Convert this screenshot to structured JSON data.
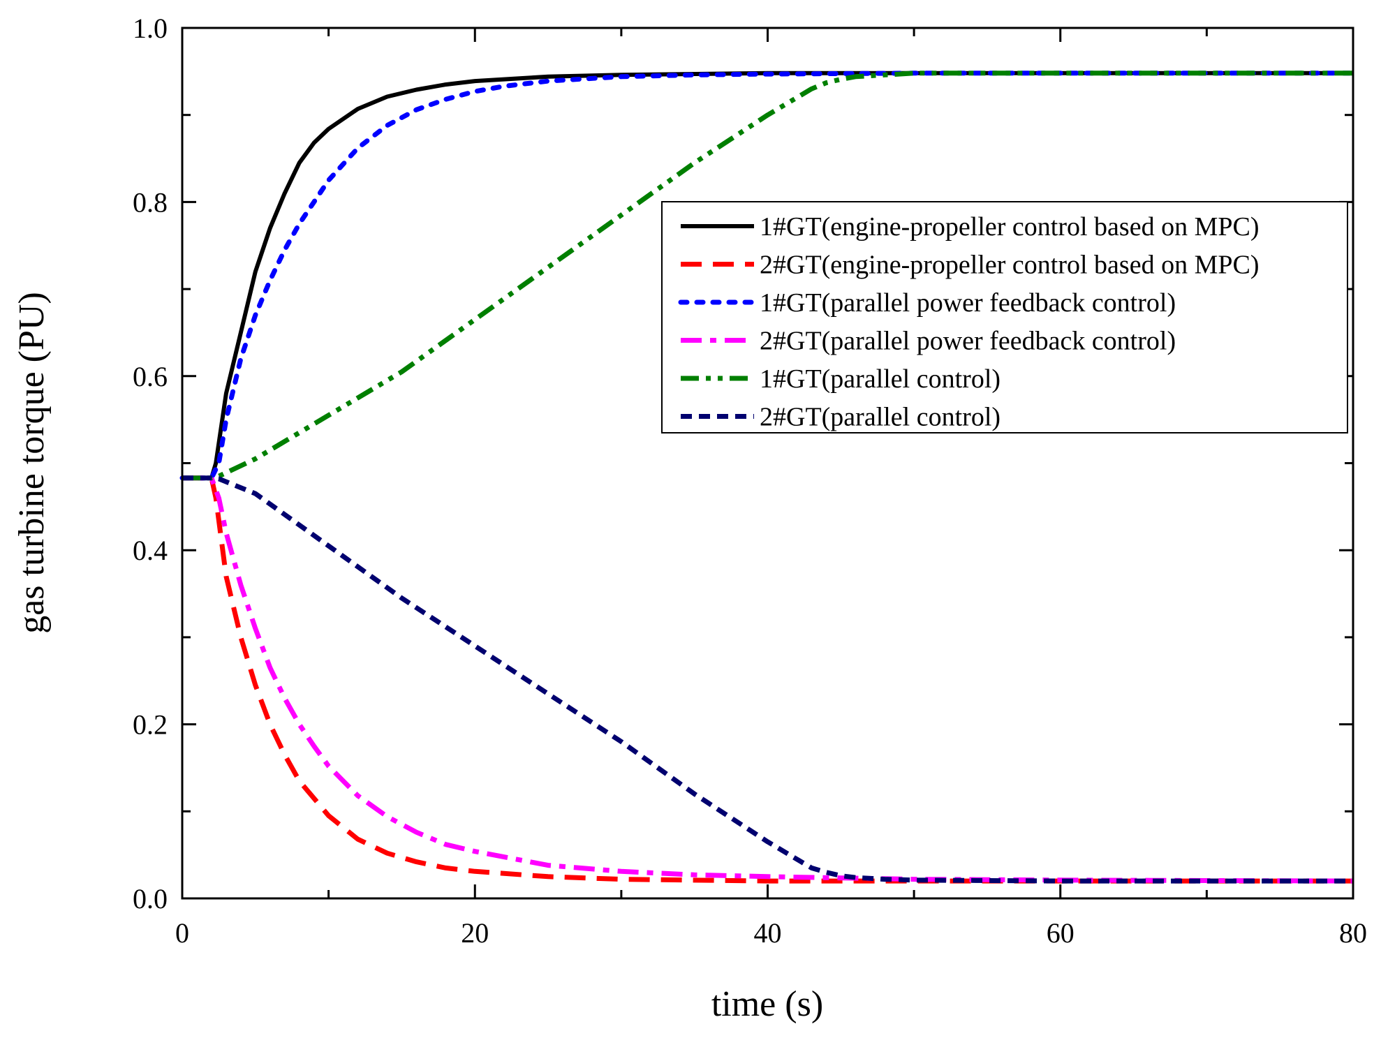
{
  "chart_data": {
    "type": "line",
    "title": "",
    "xlabel": "time (s)",
    "ylabel": "gas turbine torque (PU)",
    "xlim": [
      0,
      80
    ],
    "ylim": [
      0.0,
      1.0
    ],
    "xticks": [
      0,
      20,
      40,
      60,
      80
    ],
    "xtick_labels": [
      "0",
      "20",
      "40",
      "60",
      "80"
    ],
    "yticks": [
      0.0,
      0.2,
      0.4,
      0.6,
      0.8,
      1.0
    ],
    "ytick_labels": [
      "0.0",
      "0.2",
      "0.4",
      "0.6",
      "0.8",
      "1.0"
    ],
    "grid": false,
    "legend_position": "upper-right",
    "series": [
      {
        "name": "1#GT(engine-propeller control based on MPC)",
        "color": "#000000",
        "style": "solid",
        "x": [
          0,
          2,
          2.3,
          3,
          4,
          5,
          6,
          7,
          8,
          9,
          10,
          12,
          14,
          16,
          18,
          20,
          25,
          30,
          40,
          50,
          60,
          80
        ],
        "y": [
          0.483,
          0.483,
          0.5,
          0.58,
          0.65,
          0.72,
          0.77,
          0.81,
          0.845,
          0.868,
          0.884,
          0.907,
          0.921,
          0.929,
          0.935,
          0.939,
          0.944,
          0.946,
          0.948,
          0.948,
          0.948,
          0.948
        ]
      },
      {
        "name": "2#GT(engine-propeller control based on MPC)",
        "color": "#ff0000",
        "style": "dashed",
        "x": [
          0,
          2,
          2.3,
          3,
          4,
          5,
          6,
          7,
          8,
          9,
          10,
          12,
          14,
          16,
          18,
          20,
          25,
          30,
          40,
          50,
          60,
          80
        ],
        "y": [
          0.483,
          0.483,
          0.46,
          0.37,
          0.3,
          0.245,
          0.2,
          0.165,
          0.135,
          0.115,
          0.095,
          0.068,
          0.052,
          0.042,
          0.035,
          0.031,
          0.025,
          0.022,
          0.02,
          0.02,
          0.02,
          0.02
        ]
      },
      {
        "name": "1#GT(parallel power feedback control)",
        "color": "#0000ff",
        "style": "dotted",
        "x": [
          0,
          2,
          2.5,
          3,
          4,
          5,
          6,
          7,
          8,
          9,
          10,
          12,
          14,
          16,
          18,
          20,
          22,
          25,
          30,
          35,
          40,
          50,
          80
        ],
        "y": [
          0.483,
          0.483,
          0.5,
          0.55,
          0.62,
          0.67,
          0.71,
          0.745,
          0.775,
          0.8,
          0.825,
          0.862,
          0.888,
          0.906,
          0.918,
          0.927,
          0.933,
          0.939,
          0.944,
          0.946,
          0.947,
          0.948,
          0.948
        ]
      },
      {
        "name": "2#GT(parallel power feedback control)",
        "color": "#ff00ff",
        "style": "dash-dot",
        "x": [
          0,
          2,
          2.5,
          3,
          4,
          5,
          6,
          7,
          8,
          9,
          10,
          12,
          14,
          16,
          18,
          20,
          25,
          30,
          35,
          40,
          50,
          60,
          80
        ],
        "y": [
          0.483,
          0.483,
          0.46,
          0.42,
          0.36,
          0.31,
          0.265,
          0.23,
          0.2,
          0.175,
          0.152,
          0.118,
          0.094,
          0.076,
          0.062,
          0.054,
          0.038,
          0.031,
          0.027,
          0.025,
          0.022,
          0.021,
          0.02
        ]
      },
      {
        "name": "1#GT(parallel control)",
        "color": "#007f00",
        "style": "dash-dot-dot",
        "x": [
          0,
          2,
          2.5,
          5,
          10,
          15,
          20,
          25,
          30,
          35,
          40,
          43,
          44,
          45,
          46,
          48,
          50,
          60,
          80
        ],
        "y": [
          0.483,
          0.483,
          0.485,
          0.505,
          0.555,
          0.605,
          0.665,
          0.725,
          0.785,
          0.845,
          0.9,
          0.93,
          0.937,
          0.941,
          0.944,
          0.946,
          0.948,
          0.948,
          0.948
        ]
      },
      {
        "name": "2#GT(parallel control)",
        "color": "#00006f",
        "style": "short-dash",
        "x": [
          0,
          2,
          2.5,
          5,
          10,
          15,
          20,
          25,
          30,
          35,
          40,
          43,
          44,
          45,
          46,
          48,
          50,
          60,
          80
        ],
        "y": [
          0.483,
          0.483,
          0.482,
          0.465,
          0.405,
          0.345,
          0.29,
          0.235,
          0.18,
          0.12,
          0.065,
          0.035,
          0.03,
          0.026,
          0.024,
          0.022,
          0.021,
          0.02,
          0.02
        ]
      }
    ]
  }
}
